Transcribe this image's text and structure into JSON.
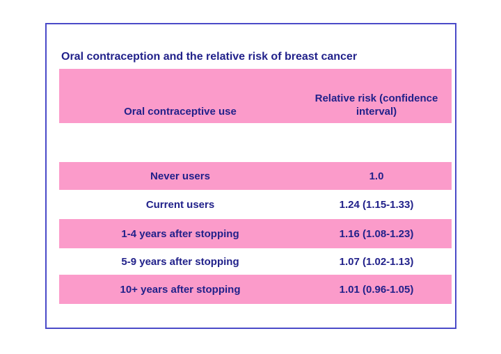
{
  "slide": {
    "title": "Oral contraception and the relative risk of breast cancer",
    "table": {
      "headers": {
        "use": "Oral contraceptive use",
        "rr": "Relative risk (confidence interval)"
      },
      "rows": [
        {
          "use": "Never users",
          "rr": "1.0"
        },
        {
          "use": "Current users",
          "rr": "1.24 (1.15-1.33)"
        },
        {
          "use": "1-4 years after stopping",
          "rr": "1.16 (1.08-1.23)"
        },
        {
          "use": "5-9 years after stopping",
          "rr": "1.07 (1.02-1.13)"
        },
        {
          "use": "10+ years after stopping",
          "rr": "1.01 (0.96-1.05)"
        }
      ]
    },
    "colors": {
      "pink": "#fb9bca",
      "border_blue": "#4a4ac8",
      "text_navy": "#21218a"
    }
  }
}
